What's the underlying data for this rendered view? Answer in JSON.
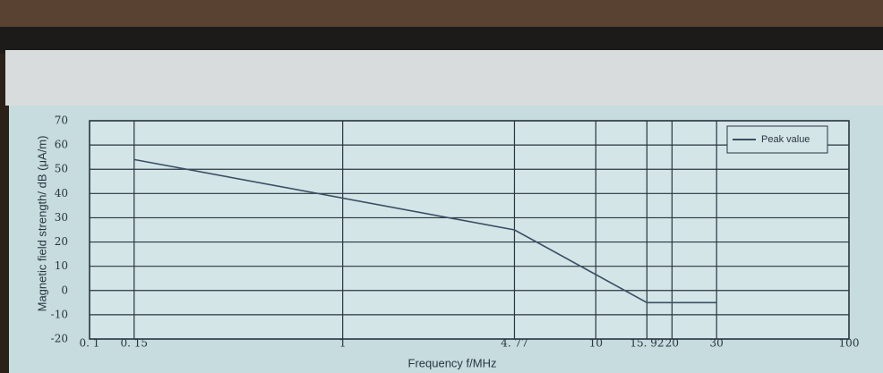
{
  "chart_data": {
    "type": "line",
    "x_label": "Frequency f/MHz",
    "y_label": "Magnetic field strength/ dB (μA/m)",
    "x": [
      0.15,
      4.77,
      15.92,
      30
    ],
    "series": [
      {
        "name": "Peak value",
        "color": "#3a4f63",
        "values": [
          54,
          25,
          -5,
          -5
        ]
      }
    ],
    "xscale": "log",
    "xlim": [
      0.1,
      100
    ],
    "ylim": [
      -20,
      70
    ],
    "xticks": [
      {
        "value": 0.1,
        "label": "0. 1"
      },
      {
        "value": 0.15,
        "label": "0. 15"
      },
      1,
      {
        "value": 4.77,
        "label": "4. 77"
      },
      10,
      {
        "value": 15.92,
        "label": "15. 92"
      },
      20,
      30,
      100
    ],
    "yticks": [
      -20,
      -10,
      0,
      10,
      20,
      30,
      40,
      50,
      60,
      70
    ],
    "grid": true,
    "legend": "upper right"
  }
}
